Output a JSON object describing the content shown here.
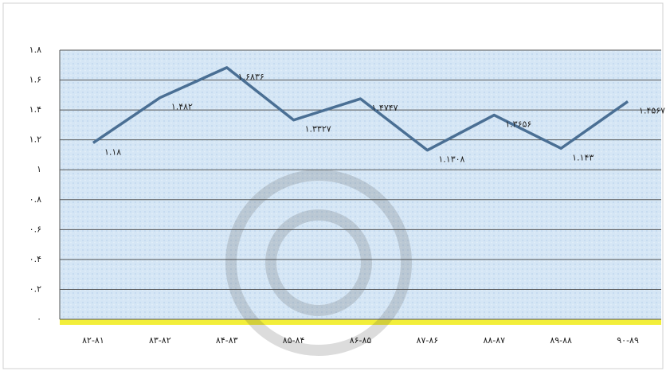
{
  "chart_data": {
    "type": "line",
    "categories": [
      "۸۲-۸۱",
      "۸۳-۸۲",
      "۸۴-۸۳",
      "۸۵-۸۴",
      "۸۶-۸۵",
      "۸۷-۸۶",
      "۸۸-۸۷",
      "۸۹-۸۸",
      "۹۰-۸۹"
    ],
    "values": [
      1.18,
      1.482,
      1.6836,
      1.3327,
      1.4747,
      1.1308,
      1.3656,
      1.143,
      1.4567
    ],
    "value_labels": [
      "۱.۱۸",
      "۱.۴۸۲",
      "۱.۶۸۳۶",
      "۱.۳۳۲۷",
      "۱.۴۷۴۷",
      "۱.۱۳۰۸",
      "۱.۳۶۵۶",
      "۱.۱۴۳",
      "۱.۴۵۶۷"
    ],
    "color": "#4a6f94",
    "ylim": [
      0,
      1.8
    ],
    "yticks": [
      {
        "value": 0,
        "label": "۰"
      },
      {
        "value": 0.2,
        "label": "۰.۲"
      },
      {
        "value": 0.4,
        "label": "۰.۴"
      },
      {
        "value": 0.6,
        "label": "۰.۶"
      },
      {
        "value": 0.8,
        "label": "۰.۸"
      },
      {
        "value": 1,
        "label": "۱"
      },
      {
        "value": 1.2,
        "label": "۱.۲"
      },
      {
        "value": 1.4,
        "label": "۱.۴"
      },
      {
        "value": 1.6,
        "label": "۱.۶"
      },
      {
        "value": 1.8,
        "label": "۱.۸"
      }
    ],
    "grid": true
  }
}
